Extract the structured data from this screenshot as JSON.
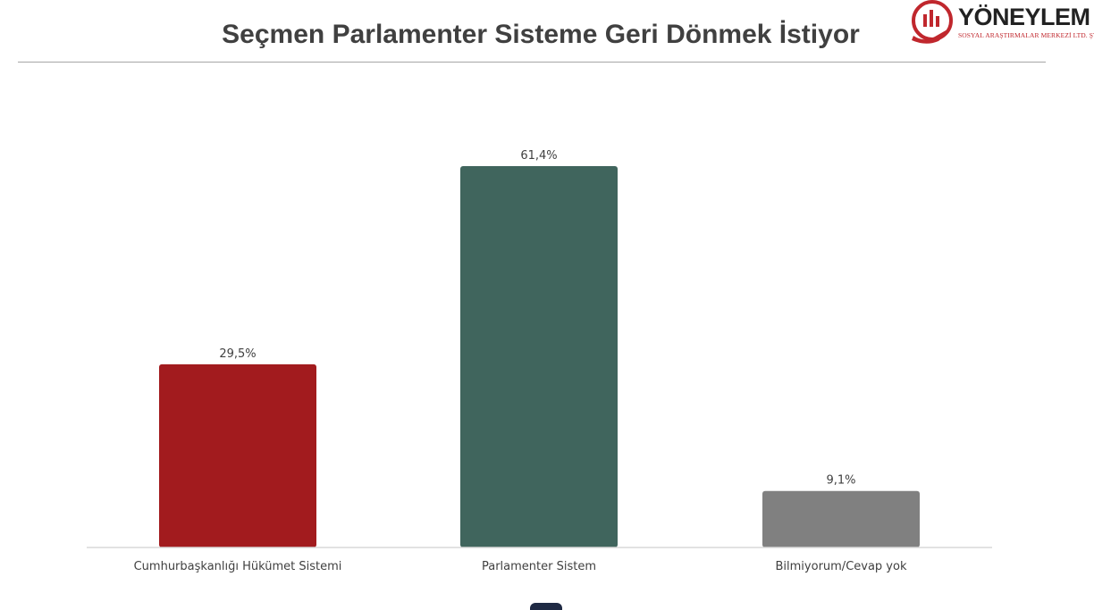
{
  "title": "Seçmen Parlamenter Sisteme Geri Dönmek İstiyor",
  "logo": {
    "name": "YÖNEYLEM",
    "subtitle": "SOSYAL ARAŞTIRMALAR MERKEZİ LTD. ŞTİ.",
    "icon": "bar-chart-hand-icon",
    "color": "#c0272d"
  },
  "chart_data": {
    "type": "bar",
    "categories": [
      "Cumhurbaşkanlığı Hükümet Sistemi",
      "Parlamenter Sistem",
      "Bilmiyorum/Cevap yok"
    ],
    "values": [
      29.5,
      61.4,
      9.1
    ],
    "value_labels": [
      "29,5%",
      "61,4%",
      "9,1%"
    ],
    "colors": [
      "#a21b1e",
      "#40655d",
      "#808080"
    ],
    "ylim": [
      0,
      70
    ],
    "grid": false,
    "legend": "none"
  }
}
